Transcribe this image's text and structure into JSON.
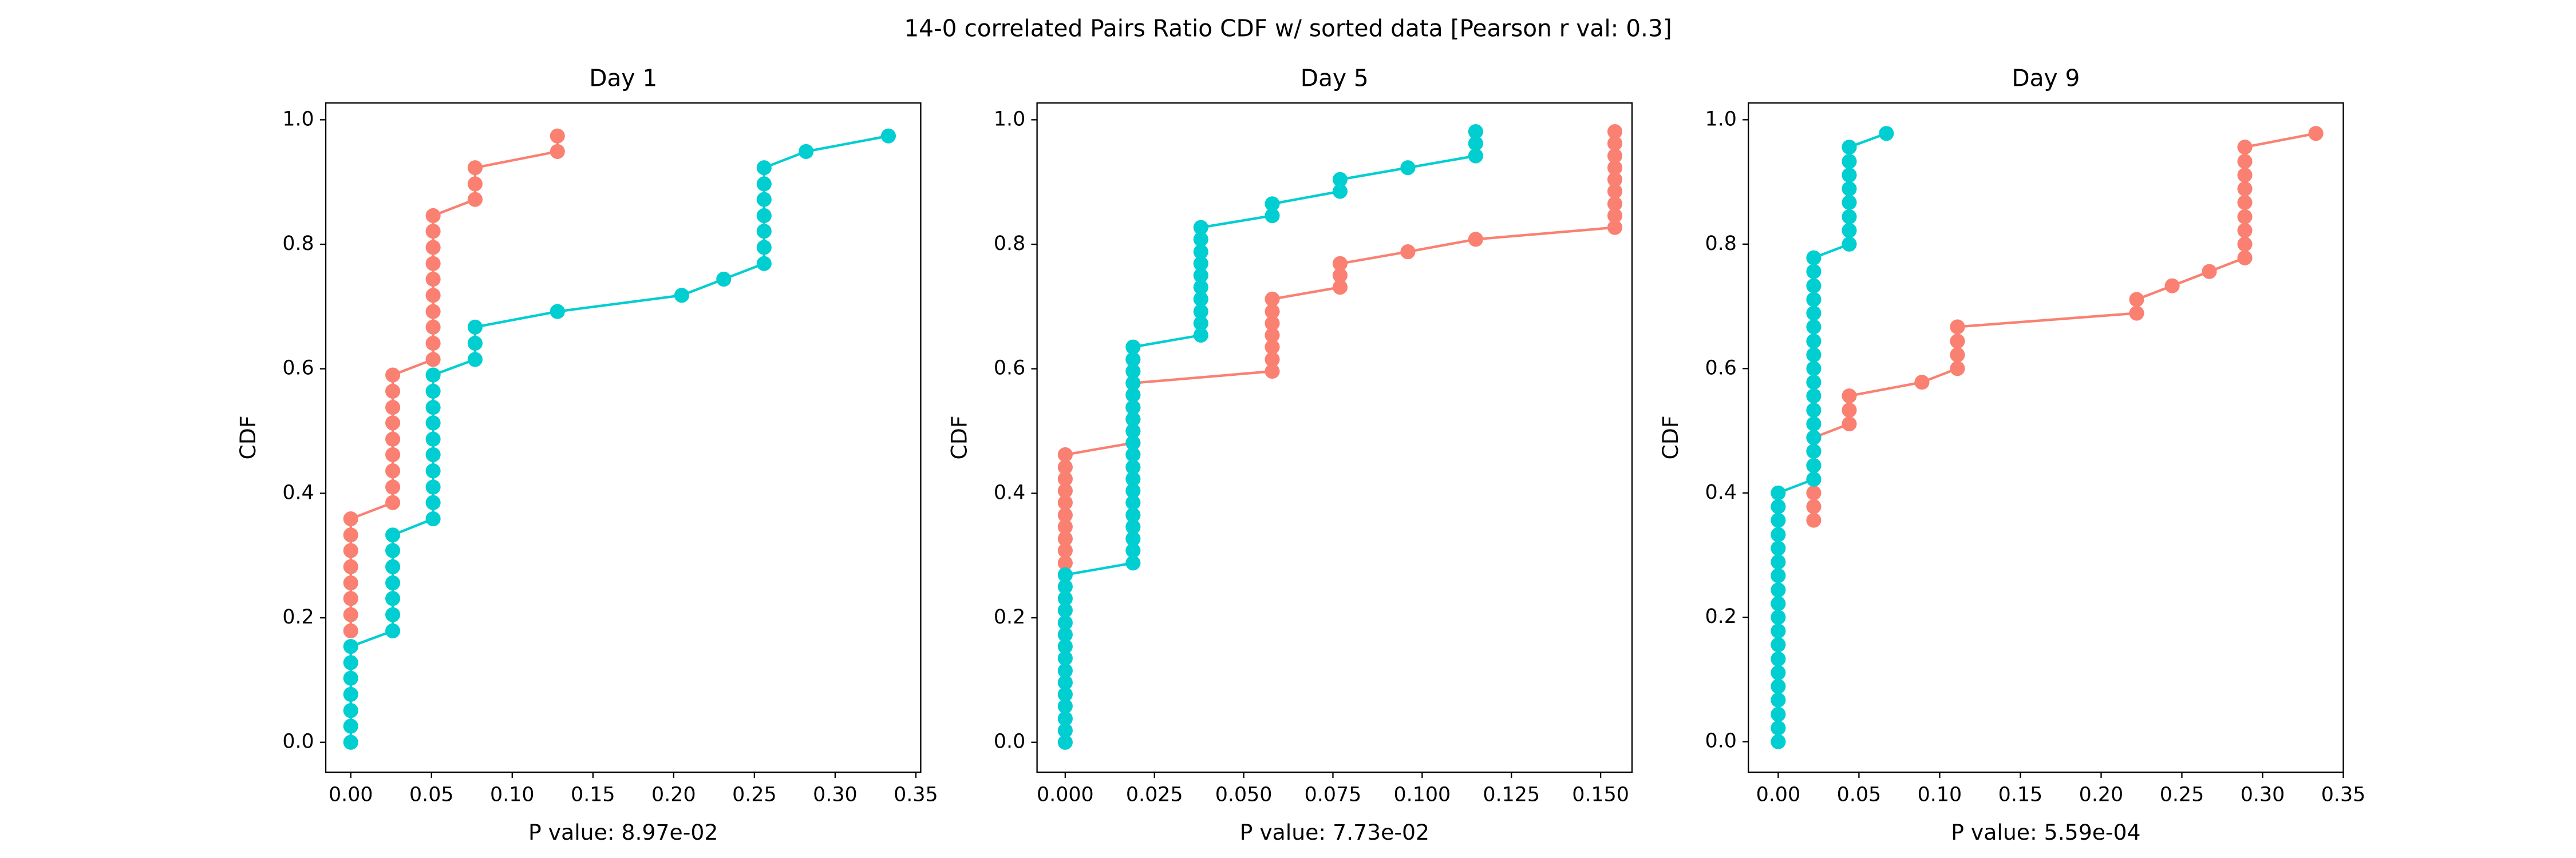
{
  "title": "14-0 correlated Pairs Ratio CDF w/ sorted data [Pearson r val: 0.3]",
  "chart_data": [
    {
      "type": "line",
      "title": "Day 1",
      "xlabel": "P value: 8.97e-02",
      "ylabel": "CDF",
      "xlim": [
        -0.0155,
        0.353
      ],
      "ylim": [
        -0.048,
        1.027
      ],
      "xticks": [
        {
          "value": 0,
          "label": "0.00"
        },
        {
          "value": 0.05,
          "label": "0.05"
        },
        {
          "value": 0.1,
          "label": "0.10"
        },
        {
          "value": 0.15,
          "label": "0.15"
        },
        {
          "value": 0.2,
          "label": "0.20"
        },
        {
          "value": 0.25,
          "label": "0.25"
        },
        {
          "value": 0.3,
          "label": "0.30"
        },
        {
          "value": 0.35,
          "label": "0.35"
        }
      ],
      "yticks": [
        {
          "value": 0,
          "label": "0.0"
        },
        {
          "value": 0.2,
          "label": "0.2"
        },
        {
          "value": 0.4,
          "label": "0.4"
        },
        {
          "value": 0.6,
          "label": "0.6"
        },
        {
          "value": 0.8,
          "label": "0.8"
        },
        {
          "value": 1,
          "label": "1.0"
        }
      ],
      "series": [
        {
          "color": "#fa8072",
          "x": [
            0,
            0,
            0,
            0,
            0,
            0,
            0,
            0,
            0.026,
            0.026,
            0.026,
            0.026,
            0.026,
            0.026,
            0.026,
            0.026,
            0.026,
            0.051,
            0.051,
            0.051,
            0.051,
            0.051,
            0.051,
            0.051,
            0.051,
            0.051,
            0.051,
            0.077,
            0.077,
            0.077,
            0.128,
            0.128
          ],
          "values": [
            0.179,
            0.205,
            0.231,
            0.256,
            0.282,
            0.308,
            0.333,
            0.359,
            0.385,
            0.41,
            0.436,
            0.462,
            0.487,
            0.513,
            0.538,
            0.564,
            0.59,
            0.615,
            0.641,
            0.667,
            0.692,
            0.718,
            0.744,
            0.769,
            0.795,
            0.821,
            0.846,
            0.872,
            0.897,
            0.923,
            0.949,
            0.974
          ]
        },
        {
          "color": "#00ced1",
          "x": [
            0,
            0,
            0,
            0,
            0,
            0,
            0,
            0.026,
            0.026,
            0.026,
            0.026,
            0.026,
            0.026,
            0.026,
            0.051,
            0.051,
            0.051,
            0.051,
            0.051,
            0.051,
            0.051,
            0.051,
            0.051,
            0.051,
            0.077,
            0.077,
            0.077,
            0.128,
            0.205,
            0.231,
            0.256,
            0.256,
            0.256,
            0.256,
            0.256,
            0.256,
            0.256,
            0.282,
            0.333
          ],
          "values": [
            0,
            0.026,
            0.051,
            0.077,
            0.103,
            0.128,
            0.154,
            0.179,
            0.205,
            0.231,
            0.256,
            0.282,
            0.308,
            0.333,
            0.359,
            0.385,
            0.41,
            0.436,
            0.462,
            0.487,
            0.513,
            0.538,
            0.564,
            0.59,
            0.615,
            0.641,
            0.667,
            0.692,
            0.718,
            0.744,
            0.769,
            0.795,
            0.821,
            0.846,
            0.872,
            0.897,
            0.923,
            0.949,
            0.974
          ]
        }
      ]
    },
    {
      "type": "line",
      "title": "Day 5",
      "xlabel": "P value: 7.73e-02",
      "ylabel": "CDF",
      "xlim": [
        -0.0079,
        0.1588
      ],
      "ylim": [
        -0.048,
        1.027
      ],
      "xticks": [
        {
          "value": 0,
          "label": "0.000"
        },
        {
          "value": 0.025,
          "label": "0.025"
        },
        {
          "value": 0.05,
          "label": "0.050"
        },
        {
          "value": 0.075,
          "label": "0.075"
        },
        {
          "value": 0.1,
          "label": "0.100"
        },
        {
          "value": 0.125,
          "label": "0.125"
        },
        {
          "value": 0.15,
          "label": "0.150"
        }
      ],
      "yticks": [
        {
          "value": 0,
          "label": "0.0"
        },
        {
          "value": 0.2,
          "label": "0.2"
        },
        {
          "value": 0.4,
          "label": "0.4"
        },
        {
          "value": 0.6,
          "label": "0.6"
        },
        {
          "value": 0.8,
          "label": "0.8"
        },
        {
          "value": 1,
          "label": "1.0"
        }
      ],
      "series": [
        {
          "color": "#fa8072",
          "x": [
            0,
            0,
            0,
            0,
            0,
            0,
            0,
            0,
            0,
            0,
            0.019,
            0.019,
            0.019,
            0.019,
            0.019,
            0.019,
            0.058,
            0.058,
            0.058,
            0.058,
            0.058,
            0.058,
            0.058,
            0.077,
            0.077,
            0.077,
            0.096,
            0.115,
            0.154,
            0.154,
            0.154,
            0.154,
            0.154,
            0.154,
            0.154,
            0.154,
            0.154
          ],
          "values": [
            0.288,
            0.308,
            0.327,
            0.346,
            0.365,
            0.385,
            0.404,
            0.423,
            0.442,
            0.462,
            0.481,
            0.5,
            0.519,
            0.538,
            0.558,
            0.577,
            0.596,
            0.615,
            0.635,
            0.654,
            0.673,
            0.692,
            0.712,
            0.731,
            0.75,
            0.769,
            0.788,
            0.808,
            0.827,
            0.846,
            0.865,
            0.885,
            0.904,
            0.923,
            0.942,
            0.962,
            0.981
          ]
        },
        {
          "color": "#00ced1",
          "x": [
            0,
            0,
            0,
            0,
            0,
            0,
            0,
            0,
            0,
            0,
            0,
            0,
            0,
            0,
            0,
            0.019,
            0.019,
            0.019,
            0.019,
            0.019,
            0.019,
            0.019,
            0.019,
            0.019,
            0.019,
            0.019,
            0.019,
            0.019,
            0.019,
            0.019,
            0.019,
            0.019,
            0.019,
            0.019,
            0.038,
            0.038,
            0.038,
            0.038,
            0.038,
            0.038,
            0.038,
            0.038,
            0.038,
            0.038,
            0.058,
            0.058,
            0.077,
            0.077,
            0.096,
            0.115,
            0.115,
            0.115
          ],
          "values": [
            0,
            0.019,
            0.038,
            0.058,
            0.077,
            0.096,
            0.115,
            0.135,
            0.154,
            0.173,
            0.192,
            0.212,
            0.231,
            0.25,
            0.269,
            0.288,
            0.308,
            0.327,
            0.346,
            0.365,
            0.385,
            0.404,
            0.423,
            0.442,
            0.462,
            0.481,
            0.5,
            0.519,
            0.538,
            0.558,
            0.577,
            0.596,
            0.615,
            0.635,
            0.654,
            0.673,
            0.692,
            0.712,
            0.731,
            0.75,
            0.769,
            0.788,
            0.808,
            0.827,
            0.846,
            0.865,
            0.885,
            0.904,
            0.923,
            0.942,
            0.962,
            0.981
          ]
        }
      ]
    },
    {
      "type": "line",
      "title": "Day 9",
      "xlabel": "P value: 5.59e-04",
      "ylabel": "CDF",
      "xlim": [
        -0.0185,
        0.35
      ],
      "ylim": [
        -0.049,
        1.027
      ],
      "xticks": [
        {
          "value": 0,
          "label": "0.00"
        },
        {
          "value": 0.05,
          "label": "0.05"
        },
        {
          "value": 0.1,
          "label": "0.10"
        },
        {
          "value": 0.15,
          "label": "0.15"
        },
        {
          "value": 0.2,
          "label": "0.20"
        },
        {
          "value": 0.25,
          "label": "0.25"
        },
        {
          "value": 0.3,
          "label": "0.30"
        },
        {
          "value": 0.35,
          "label": "0.35"
        }
      ],
      "yticks": [
        {
          "value": 0,
          "label": "0.0"
        },
        {
          "value": 0.2,
          "label": "0.2"
        },
        {
          "value": 0.4,
          "label": "0.4"
        },
        {
          "value": 0.6,
          "label": "0.6"
        },
        {
          "value": 0.8,
          "label": "0.8"
        },
        {
          "value": 1,
          "label": "1.0"
        }
      ],
      "series": [
        {
          "color": "#fa8072",
          "x": [
            0.022,
            0.022,
            0.022,
            0.022,
            0.022,
            0.022,
            0.022,
            0.044,
            0.044,
            0.044,
            0.089,
            0.111,
            0.111,
            0.111,
            0.111,
            0.222,
            0.222,
            0.244,
            0.267,
            0.289,
            0.289,
            0.289,
            0.289,
            0.289,
            0.289,
            0.289,
            0.289,
            0.289,
            0.333
          ],
          "values": [
            0.356,
            0.378,
            0.4,
            0.422,
            0.444,
            0.467,
            0.489,
            0.511,
            0.533,
            0.556,
            0.578,
            0.6,
            0.622,
            0.644,
            0.667,
            0.689,
            0.711,
            0.733,
            0.756,
            0.778,
            0.8,
            0.822,
            0.844,
            0.867,
            0.889,
            0.911,
            0.933,
            0.956,
            0.978
          ]
        },
        {
          "color": "#00ced1",
          "x": [
            0,
            0,
            0,
            0,
            0,
            0,
            0,
            0,
            0,
            0,
            0,
            0,
            0,
            0,
            0,
            0,
            0,
            0,
            0,
            0.022,
            0.022,
            0.022,
            0.022,
            0.022,
            0.022,
            0.022,
            0.022,
            0.022,
            0.022,
            0.022,
            0.022,
            0.022,
            0.022,
            0.022,
            0.022,
            0.022,
            0.044,
            0.044,
            0.044,
            0.044,
            0.044,
            0.044,
            0.044,
            0.044,
            0.067
          ],
          "values": [
            0,
            0.022,
            0.044,
            0.067,
            0.089,
            0.111,
            0.133,
            0.156,
            0.178,
            0.2,
            0.222,
            0.244,
            0.267,
            0.289,
            0.311,
            0.333,
            0.356,
            0.378,
            0.4,
            0.422,
            0.444,
            0.467,
            0.489,
            0.511,
            0.533,
            0.556,
            0.578,
            0.6,
            0.622,
            0.644,
            0.667,
            0.689,
            0.711,
            0.733,
            0.756,
            0.778,
            0.8,
            0.822,
            0.844,
            0.867,
            0.889,
            0.911,
            0.933,
            0.956,
            0.978
          ]
        }
      ]
    }
  ]
}
